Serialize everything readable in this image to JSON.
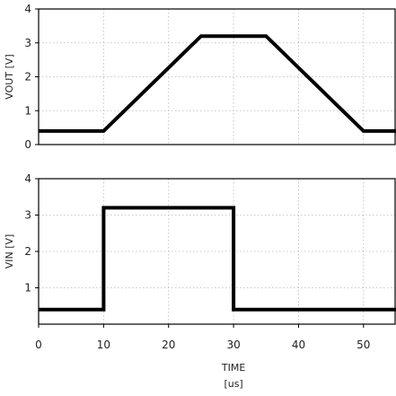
{
  "chart_data": [
    {
      "type": "line",
      "ylabel": "VOUT [V]",
      "ylim": [
        0,
        4
      ],
      "yticks": [
        "0",
        "1",
        "2",
        "3",
        "4"
      ],
      "xlim": [
        0,
        55
      ],
      "grid": true,
      "series": [
        {
          "x": [
            0,
            10,
            25,
            35,
            50,
            55
          ],
          "y": [
            0.4,
            0.4,
            3.2,
            3.2,
            0.4,
            0.4
          ]
        }
      ]
    },
    {
      "type": "line",
      "ylabel": "VIN [V]",
      "ylim": [
        0,
        4
      ],
      "yticks": [
        "1",
        "2",
        "3",
        "4"
      ],
      "xlim": [
        0,
        55
      ],
      "xticks": [
        "0",
        "10",
        "20",
        "30",
        "40",
        "50"
      ],
      "xlabel": "TIME",
      "xunit": "[us]",
      "grid": true,
      "series": [
        {
          "x": [
            0,
            10,
            10,
            30,
            30,
            55
          ],
          "y": [
            0.4,
            0.4,
            3.2,
            3.2,
            0.4,
            0.4
          ]
        }
      ]
    }
  ]
}
